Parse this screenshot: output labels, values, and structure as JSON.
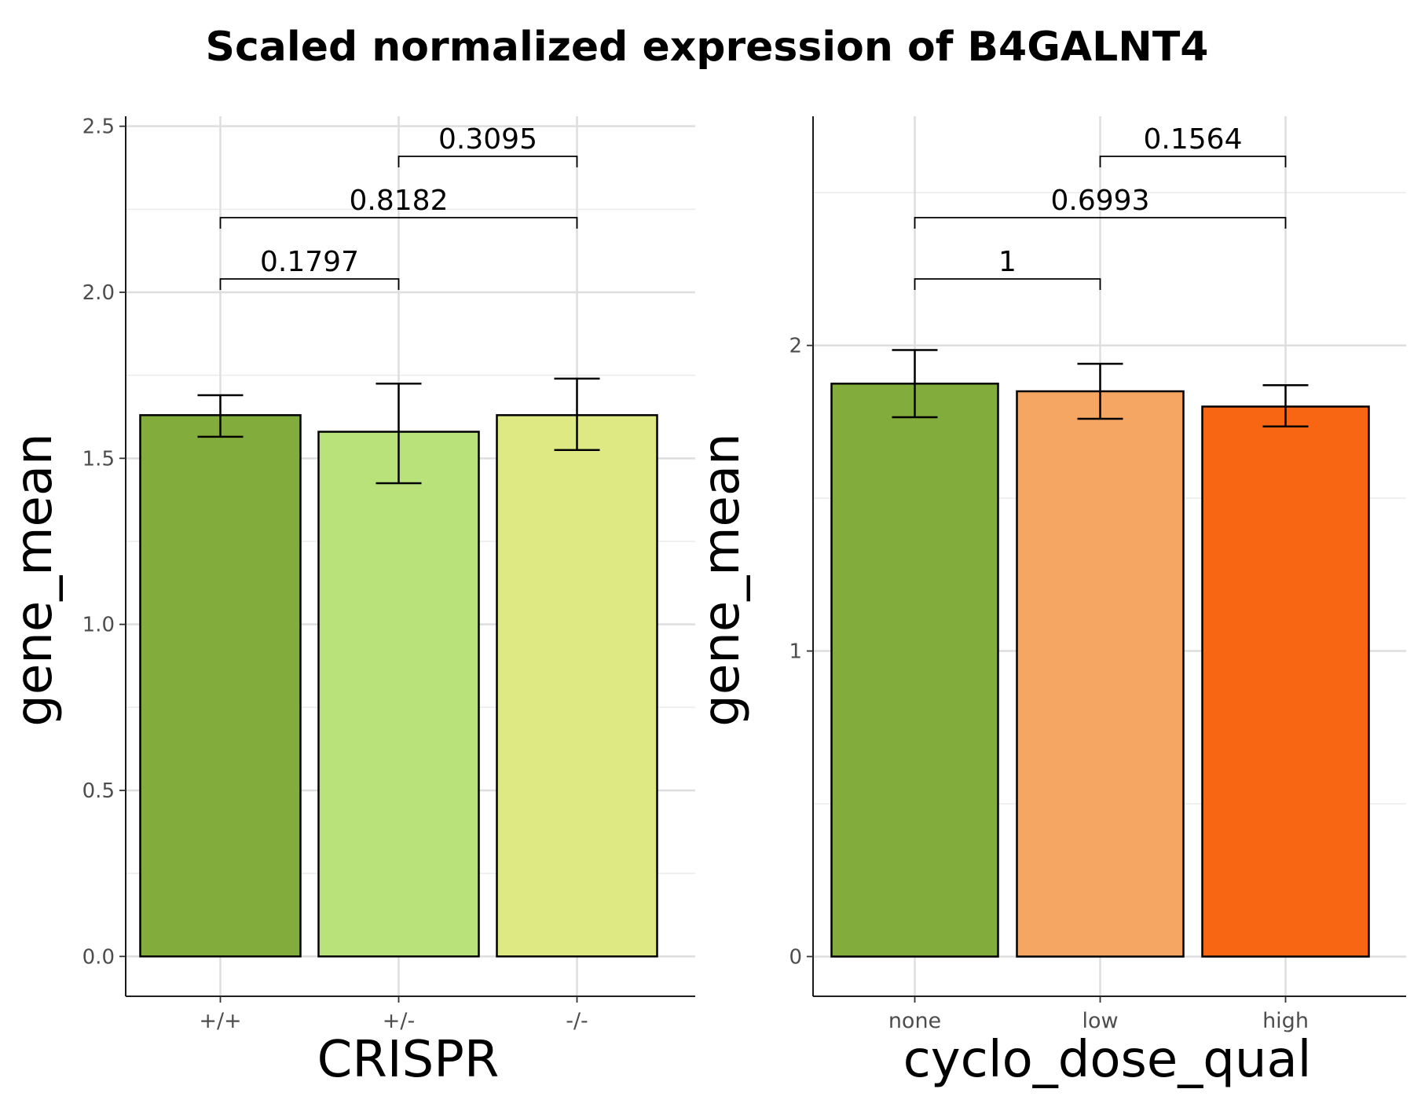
{
  "title": "Scaled normalized expression of B4GALNT4",
  "chart_data": [
    {
      "type": "bar",
      "xlabel": "CRISPR",
      "ylabel": "gene_mean",
      "ylim": [
        -0.12,
        2.53
      ],
      "yticks": [
        0.0,
        0.5,
        1.0,
        1.5,
        2.0,
        2.5
      ],
      "ytick_labels": [
        "0.0",
        "0.5",
        "1.0",
        "1.5",
        "2.0",
        "2.5"
      ],
      "categories": [
        "+/+",
        "+/-",
        "-/-"
      ],
      "values": [
        1.63,
        1.58,
        1.63
      ],
      "error_low": [
        1.565,
        1.425,
        1.525
      ],
      "error_high": [
        1.69,
        1.725,
        1.74
      ],
      "colors": [
        "#82AD3C",
        "#B9E37A",
        "#DFE983"
      ],
      "grid": true,
      "comparisons": [
        {
          "from": 0,
          "to": 1,
          "label": "0.1797"
        },
        {
          "from": 0,
          "to": 2,
          "label": "0.8182"
        },
        {
          "from": 1,
          "to": 2,
          "label": "0.3095"
        }
      ]
    },
    {
      "type": "bar",
      "xlabel": "cyclo_dose_qual",
      "ylabel": "gene_mean",
      "ylim": [
        -0.13,
        2.75
      ],
      "yticks": [
        0,
        1,
        2
      ],
      "ytick_labels": [
        "0",
        "1",
        "2"
      ],
      "categories": [
        "none",
        "low",
        "high"
      ],
      "values": [
        1.875,
        1.85,
        1.8
      ],
      "error_low": [
        1.765,
        1.76,
        1.735
      ],
      "error_high": [
        1.985,
        1.94,
        1.87
      ],
      "colors": [
        "#82AD3C",
        "#F5A663",
        "#F86513"
      ],
      "grid": true,
      "comparisons": [
        {
          "from": 0,
          "to": 1,
          "label": "1"
        },
        {
          "from": 0,
          "to": 2,
          "label": "0.6993"
        },
        {
          "from": 1,
          "to": 2,
          "label": "0.1564"
        }
      ]
    }
  ]
}
